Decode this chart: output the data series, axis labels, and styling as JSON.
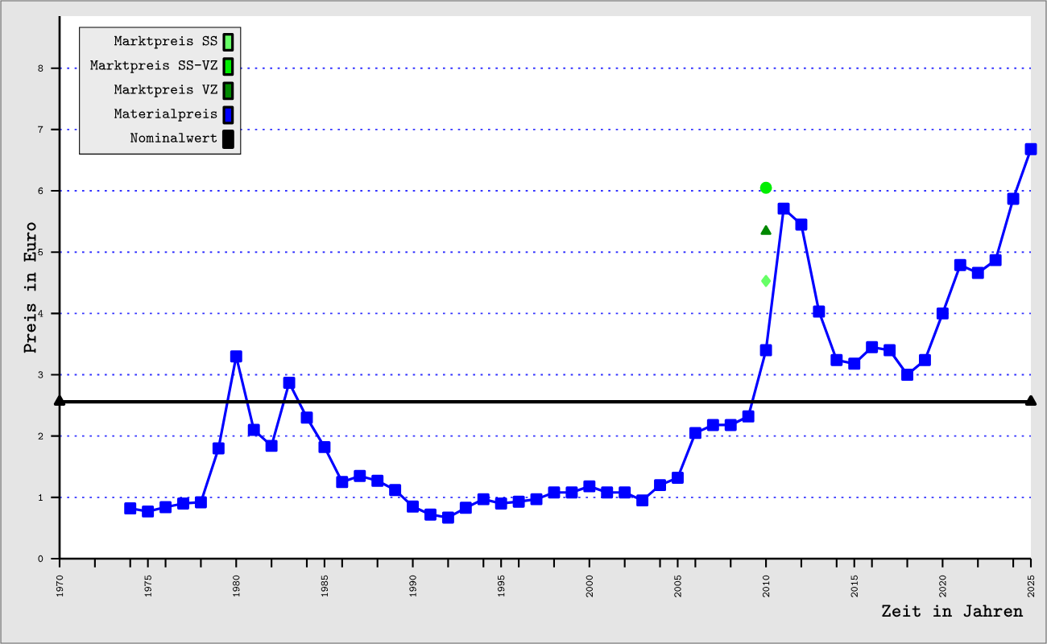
{
  "chart_data": {
    "type": "line",
    "xlabel": "Zeit in Jahren",
    "ylabel": "Preis in Euro",
    "xlim": [
      1970,
      2025
    ],
    "ylim": [
      0,
      8.85
    ],
    "xticks": [
      1970,
      {
        "value": 1972,
        "label": null
      },
      {
        "value": 1974,
        "label": null
      },
      1975,
      {
        "value": 1976,
        "label": null
      },
      {
        "value": 1978,
        "label": null
      },
      1980,
      {
        "value": 1982,
        "label": null
      },
      {
        "value": 1984,
        "label": null
      },
      1985,
      {
        "value": 1986,
        "label": null
      },
      {
        "value": 1988,
        "label": null
      },
      1990,
      {
        "value": 1992,
        "label": null
      },
      {
        "value": 1994,
        "label": null
      },
      1995,
      {
        "value": 1996,
        "label": null
      },
      {
        "value": 1998,
        "label": null
      },
      2000,
      {
        "value": 2002,
        "label": null
      },
      {
        "value": 2004,
        "label": null
      },
      2005,
      {
        "value": 2006,
        "label": null
      },
      {
        "value": 2008,
        "label": null
      },
      2010,
      {
        "value": 2012,
        "label": null
      },
      {
        "value": 2014,
        "label": null
      },
      2015,
      {
        "value": 2016,
        "label": null
      },
      {
        "value": 2018,
        "label": null
      },
      2020,
      {
        "value": 2022,
        "label": null
      },
      {
        "value": 2024,
        "label": null
      },
      2025
    ],
    "yticks": [
      0,
      1,
      2,
      3,
      4,
      5,
      6,
      7,
      8
    ],
    "grid": "y",
    "legend": "top left",
    "series": [
      {
        "name": "Marktpreis SS",
        "type": "scatter",
        "marker": "diamond",
        "color": "#66ff66",
        "x": [
          2010
        ],
        "values": [
          4.53
        ]
      },
      {
        "name": "Marktpreis SS-VZ",
        "type": "scatter",
        "marker": "circle",
        "color": "#00ee00",
        "x": [
          2010
        ],
        "values": [
          6.05
        ]
      },
      {
        "name": "Marktpreis VZ",
        "type": "scatter",
        "marker": "triangle",
        "color": "#008800",
        "x": [
          2010
        ],
        "values": [
          5.34
        ]
      },
      {
        "name": "Materialpreis",
        "type": "line",
        "marker": "square",
        "color": "#0000ff",
        "x": [
          1974,
          1975,
          1976,
          1977,
          1978,
          1979,
          1980,
          1981,
          1982,
          1983,
          1984,
          1985,
          1986,
          1987,
          1988,
          1989,
          1990,
          1991,
          1992,
          1993,
          1994,
          1995,
          1996,
          1997,
          1998,
          1999,
          2000,
          2001,
          2002,
          2003,
          2004,
          2005,
          2006,
          2007,
          2008,
          2009,
          2010,
          2011,
          2012,
          2013,
          2014,
          2015,
          2016,
          2017,
          2018,
          2019,
          2020,
          2021,
          2022,
          2023,
          2024,
          2025
        ],
        "values": [
          0.82,
          0.77,
          0.84,
          0.9,
          0.92,
          1.8,
          3.3,
          2.1,
          1.84,
          2.87,
          2.3,
          1.82,
          1.25,
          1.35,
          1.27,
          1.12,
          0.85,
          0.72,
          0.67,
          0.83,
          0.97,
          0.9,
          0.93,
          0.97,
          1.08,
          1.08,
          1.18,
          1.08,
          1.08,
          0.95,
          1.2,
          1.32,
          2.05,
          2.18,
          2.18,
          2.32,
          3.4,
          5.71,
          5.45,
          4.03,
          3.24,
          3.18,
          3.45,
          3.4,
          3.0,
          3.24,
          4.0,
          4.79,
          4.66,
          4.87,
          5.87,
          6.68
        ]
      },
      {
        "name": "Nominalwert",
        "type": "line",
        "marker": "triangle",
        "color": "#000000",
        "x": [
          1970,
          2025
        ],
        "values": [
          2.56,
          2.56
        ]
      }
    ]
  }
}
